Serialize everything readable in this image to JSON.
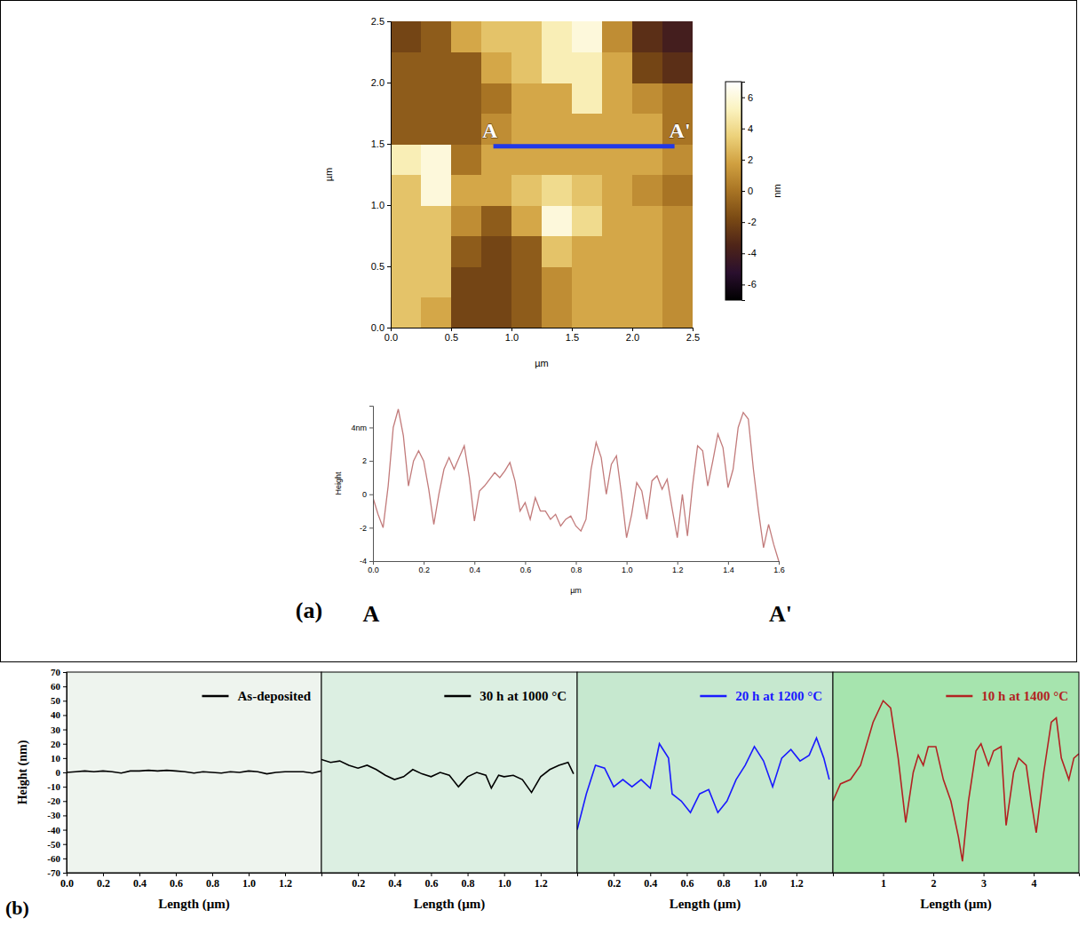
{
  "chart_data": [
    {
      "type": "heatmap",
      "xlabel": "µm",
      "ylabel": "µm",
      "xlim": [
        0,
        2.5
      ],
      "ylim": [
        0,
        2.5
      ],
      "xticks": [
        {
          "value": 0,
          "label": "0.0"
        },
        0.5,
        {
          "value": 1,
          "label": "1.0"
        },
        1.5,
        {
          "value": 2,
          "label": "2.0"
        },
        2.5
      ],
      "yticks": [
        {
          "value": 0,
          "label": "0.0"
        },
        0.5,
        {
          "value": 1,
          "label": "1.0"
        },
        1.5,
        {
          "value": 2,
          "label": "2.0"
        },
        2.5
      ],
      "cells": [
        [
          3,
          2,
          -2,
          -2,
          -1,
          1,
          2,
          2,
          2,
          1
        ],
        [
          3,
          3,
          -2,
          -2,
          -1,
          1,
          2,
          2,
          2,
          1
        ],
        [
          3,
          3,
          -1,
          -2,
          -1,
          3,
          2,
          2,
          2,
          1
        ],
        [
          3,
          3,
          1,
          -1,
          2,
          6,
          4,
          2,
          2,
          1
        ],
        [
          3,
          6,
          2,
          2,
          3,
          4,
          3,
          2,
          1,
          0
        ],
        [
          5,
          6,
          0,
          2,
          2,
          2,
          2,
          2,
          2,
          1
        ],
        [
          -1,
          -1,
          -1,
          1,
          2,
          2,
          2,
          2,
          2,
          0
        ],
        [
          -1,
          -1,
          -1,
          0,
          2,
          2,
          5,
          2,
          1,
          0
        ],
        [
          -1,
          -1,
          -1,
          2,
          3,
          5,
          5,
          2,
          -2,
          -3
        ],
        [
          -2,
          -1,
          2,
          3,
          3,
          5,
          6,
          1,
          -3,
          -4
        ]
      ],
      "colorbar_range": [
        -7,
        7
      ],
      "colorbar_ticks": [
        -6,
        -4,
        -2,
        0,
        2,
        4,
        6
      ],
      "colorbar_label": "nm",
      "profile_line": {
        "x": [
          0.85,
          2.35
        ],
        "y": [
          1.48,
          1.48
        ],
        "color": "#2238e6"
      },
      "annotations": [
        {
          "text": "A",
          "x": 0.85,
          "y": 1.48
        },
        {
          "text": "A'",
          "x": 2.35,
          "y": 1.48
        }
      ]
    },
    {
      "type": "line",
      "xlabel": "µm",
      "ylabel": "Height",
      "panel_label": "(a)",
      "start_label": "A",
      "end_label": "A'",
      "xlim": [
        0,
        1.6
      ],
      "ylim": [
        -4,
        5.3
      ],
      "xticks": [
        {
          "value": 0,
          "label": "0.0"
        },
        0.2,
        0.4,
        0.6,
        0.8,
        {
          "value": 1,
          "label": "1.0"
        },
        1.2,
        1.4,
        1.6
      ],
      "yticks": [
        -4,
        -2,
        0,
        2,
        {
          "value": 4,
          "label": "4nm"
        }
      ],
      "x": [
        0,
        0.02,
        0.04,
        0.06,
        0.08,
        0.1,
        0.12,
        0.14,
        0.16,
        0.18,
        0.2,
        0.22,
        0.24,
        0.26,
        0.28,
        0.3,
        0.32,
        0.34,
        0.36,
        0.38,
        0.4,
        0.42,
        0.44,
        0.46,
        0.48,
        0.5,
        0.52,
        0.54,
        0.56,
        0.58,
        0.6,
        0.62,
        0.64,
        0.66,
        0.68,
        0.7,
        0.72,
        0.74,
        0.76,
        0.78,
        0.8,
        0.82,
        0.84,
        0.86,
        0.88,
        0.9,
        0.92,
        0.94,
        0.96,
        0.98,
        1.0,
        1.02,
        1.04,
        1.06,
        1.08,
        1.1,
        1.12,
        1.14,
        1.16,
        1.18,
        1.2,
        1.22,
        1.24,
        1.26,
        1.28,
        1.3,
        1.32,
        1.34,
        1.36,
        1.38,
        1.4,
        1.42,
        1.44,
        1.46,
        1.48,
        1.5,
        1.52,
        1.54,
        1.56,
        1.58,
        1.6
      ],
      "series": [
        {
          "color": "#c27b7b",
          "values": [
            -0.2,
            -1.2,
            -2.0,
            0.5,
            4,
            5.1,
            3.5,
            0.5,
            2,
            2.6,
            2.0,
            0.3,
            -1.8,
            0,
            1.5,
            2.2,
            1.5,
            2.2,
            2.9,
            1.0,
            -1.6,
            0.2,
            0.5,
            0.9,
            1.3,
            1.0,
            1.4,
            1.9,
            0.8,
            -1.0,
            -0.5,
            -1.5,
            -0.2,
            -1.0,
            -1.0,
            -1.5,
            -1.2,
            -1.9,
            -1.5,
            -1.3,
            -1.9,
            -2.2,
            -1.5,
            1.5,
            3.1,
            2.2,
            0,
            1.8,
            2.3,
            0,
            -2.6,
            -1.2,
            0.7,
            0.2,
            -1.5,
            0.8,
            1.1,
            0.3,
            0.9,
            -0.9,
            -2.6,
            0,
            -2.5,
            0.5,
            2.9,
            2.6,
            0.5,
            2.0,
            3.6,
            2.8,
            0.4,
            1.5,
            4.0,
            4.9,
            4.5,
            1.5,
            -1.0,
            -3.2,
            -1.8,
            -3.0,
            -4.0
          ]
        }
      ]
    },
    {
      "type": "line",
      "panel_label": "(b)",
      "xlabel": "Length (µm)",
      "ylabel": "Height (nm)",
      "xlim": [
        0,
        1.4
      ],
      "ylim": [
        -70,
        70
      ],
      "xticks": [
        {
          "value": 0,
          "label": "0.0"
        },
        0.2,
        0.4,
        0.6,
        0.8,
        {
          "value": 1,
          "label": "1.0"
        },
        1.2
      ],
      "yticks": [
        -70,
        -60,
        -50,
        -40,
        -30,
        -20,
        -10,
        0,
        10,
        20,
        30,
        40,
        50,
        60,
        70
      ],
      "legend": "upper right",
      "x": [
        0,
        0.05,
        0.1,
        0.15,
        0.2,
        0.25,
        0.3,
        0.35,
        0.4,
        0.45,
        0.5,
        0.55,
        0.6,
        0.65,
        0.7,
        0.75,
        0.8,
        0.85,
        0.9,
        0.95,
        1.0,
        1.05,
        1.1,
        1.15,
        1.2,
        1.25,
        1.3,
        1.35,
        1.4
      ],
      "series": [
        {
          "name": "As-deposited",
          "color": "#000000",
          "values": [
            0,
            0.5,
            1,
            0.5,
            1,
            0.5,
            -0.5,
            1,
            1,
            1.5,
            1,
            1.5,
            1,
            0.5,
            -0.5,
            0.5,
            0,
            -0.5,
            0.5,
            0,
            1,
            0.5,
            -1,
            0,
            0.5,
            0.5,
            0.5,
            -0.5,
            1
          ]
        }
      ]
    },
    {
      "type": "line",
      "xlabel": "Length (µm)",
      "xlim": [
        0,
        1.4
      ],
      "ylim": [
        -70,
        70
      ],
      "xticks": [
        0.2,
        0.4,
        0.6,
        0.8,
        {
          "value": 1,
          "label": "1.0"
        },
        1.2
      ],
      "tick_labels": "x",
      "legend": "upper right",
      "x": [
        0,
        0.05,
        0.1,
        0.15,
        0.2,
        0.25,
        0.3,
        0.35,
        0.4,
        0.45,
        0.5,
        0.55,
        0.6,
        0.65,
        0.7,
        0.75,
        0.8,
        0.85,
        0.9,
        0.93,
        0.97,
        1.0,
        1.05,
        1.1,
        1.15,
        1.2,
        1.25,
        1.3,
        1.35,
        1.38
      ],
      "series": [
        {
          "name": "30 h at 1000 °C",
          "color": "#000000",
          "values": [
            9,
            7,
            8,
            5,
            3,
            5,
            2,
            -2,
            -5,
            -3,
            2,
            -1,
            -3,
            0,
            -2,
            -10,
            -3,
            0,
            -2,
            -11,
            -2,
            -3,
            -2,
            -5,
            -14,
            -3,
            2,
            5,
            7,
            -1
          ]
        }
      ]
    },
    {
      "type": "line",
      "xlabel": "Length (µm)",
      "xlim": [
        0,
        1.4
      ],
      "ylim": [
        -70,
        70
      ],
      "xticks": [
        0.2,
        0.4,
        0.6,
        0.8,
        {
          "value": 1,
          "label": "1.0"
        },
        1.2
      ],
      "tick_labels": "x",
      "legend": "upper right",
      "x": [
        0,
        0.05,
        0.1,
        0.15,
        0.2,
        0.25,
        0.3,
        0.35,
        0.4,
        0.45,
        0.5,
        0.52,
        0.57,
        0.62,
        0.67,
        0.72,
        0.77,
        0.82,
        0.87,
        0.92,
        0.97,
        1.02,
        1.07,
        1.12,
        1.17,
        1.22,
        1.27,
        1.31,
        1.35,
        1.38
      ],
      "series": [
        {
          "name": "20 h at 1200 °C",
          "color": "#1a1aff",
          "values": [
            -40,
            -15,
            5,
            3,
            -10,
            -5,
            -10,
            -5,
            -11,
            20,
            10,
            -15,
            -20,
            -28,
            -15,
            -12,
            -28,
            -20,
            -5,
            5,
            18,
            8,
            -10,
            10,
            16,
            8,
            12,
            24,
            10,
            -5
          ]
        }
      ]
    },
    {
      "type": "line",
      "xlabel": "Length (µm)",
      "xlim": [
        0,
        4.9
      ],
      "ylim": [
        -70,
        70
      ],
      "xticks": [
        1,
        2,
        3,
        4
      ],
      "tick_labels": "x",
      "legend": "upper right",
      "x": [
        0,
        0.15,
        0.35,
        0.55,
        0.8,
        1.0,
        1.15,
        1.3,
        1.45,
        1.6,
        1.7,
        1.8,
        1.9,
        2.05,
        2.2,
        2.35,
        2.5,
        2.58,
        2.7,
        2.85,
        2.95,
        3.1,
        3.2,
        3.35,
        3.45,
        3.6,
        3.7,
        3.85,
        3.95,
        4.05,
        4.2,
        4.35,
        4.45,
        4.55,
        4.7,
        4.8,
        4.9
      ],
      "series": [
        {
          "name": "10 h at 1400 °C",
          "color": "#b22222",
          "values": [
            -20,
            -8,
            -5,
            5,
            35,
            50,
            45,
            10,
            -35,
            0,
            12,
            5,
            18,
            18,
            -5,
            -20,
            -45,
            -62,
            -20,
            15,
            20,
            5,
            15,
            18,
            -37,
            0,
            10,
            5,
            -20,
            -42,
            0,
            35,
            38,
            10,
            -5,
            10,
            13
          ]
        }
      ]
    }
  ]
}
